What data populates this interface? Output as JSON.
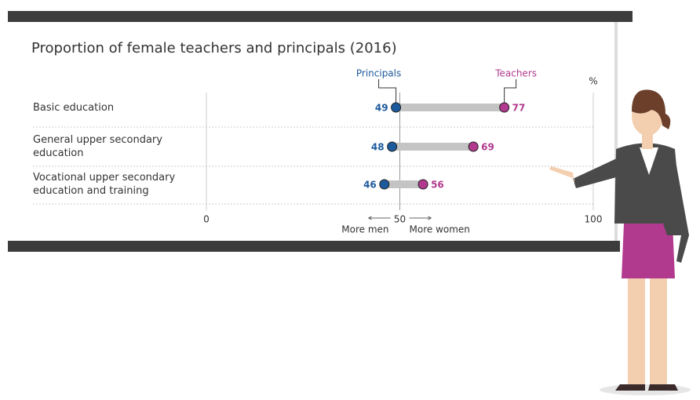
{
  "chart_data": {
    "type": "dumbbell",
    "title": "Proportion of female teachers and principals (2016)",
    "categories": [
      "Basic education",
      "General upper secondary education",
      "Vocational upper secondary education and training"
    ],
    "series": [
      {
        "name": "Principals",
        "color": "#1d5a9c",
        "values": [
          49,
          48,
          46
        ]
      },
      {
        "name": "Teachers",
        "color": "#b23a8e",
        "values": [
          77,
          69,
          56
        ]
      }
    ],
    "xlim": [
      0,
      100
    ],
    "xticks": [
      0,
      50,
      100
    ],
    "unit_label": "%",
    "annotations": [
      "More men",
      "More women"
    ]
  }
}
